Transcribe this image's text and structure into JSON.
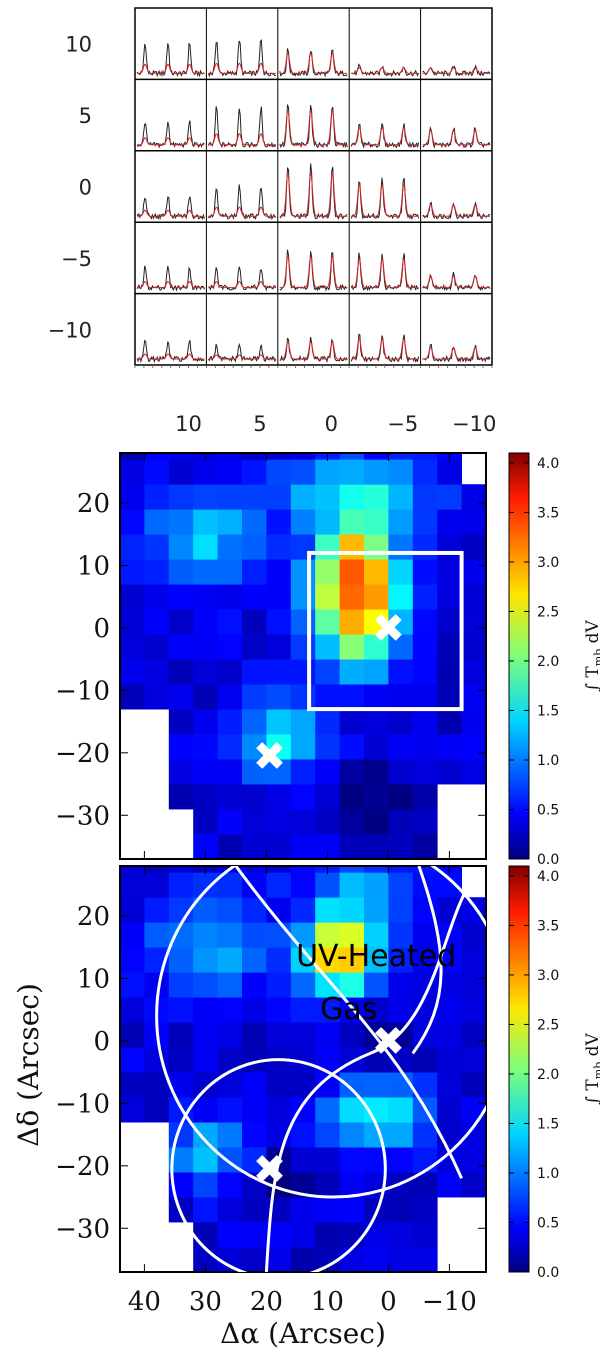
{
  "chart_data": [
    {
      "type": "line",
      "description_role": "spectra grid",
      "rows": 5,
      "cols": 5,
      "row_offsets": [
        10,
        5,
        0,
        -5,
        -10
      ],
      "col_offsets": [
        10,
        5,
        0,
        -5,
        -10
      ],
      "yticks": [
        "10",
        "5",
        "0",
        "−5",
        "−10"
      ],
      "xticks": [
        "10",
        "5",
        "0",
        "−5",
        "−10"
      ],
      "series": [
        {
          "name": "",
          "color": "#222222"
        },
        {
          "name": "",
          "color": "#d62728"
        }
      ],
      "peak_scale": [
        [
          0.9,
          1.0,
          0.7,
          0.2,
          0.2
        ],
        [
          0.7,
          1.1,
          1.2,
          0.6,
          0.5
        ],
        [
          0.6,
          0.9,
          1.5,
          1.1,
          0.4
        ],
        [
          0.6,
          0.6,
          1.1,
          1.0,
          0.4
        ],
        [
          0.5,
          0.4,
          0.6,
          0.7,
          0.4
        ]
      ]
    },
    {
      "type": "heatmap",
      "role": "top-map",
      "xlim": [
        44,
        -16
      ],
      "ylim": [
        -37,
        28
      ],
      "yticks": [
        20,
        10,
        0,
        -10,
        -20,
        -30
      ],
      "ytick_labels": [
        "20",
        "10",
        "0",
        "−10",
        "−20",
        "−30"
      ],
      "markers": [
        {
          "x": 0,
          "y": 0,
          "symbol": "✖"
        },
        {
          "x": 19.5,
          "y": -20.5,
          "symbol": "✖"
        }
      ],
      "box": {
        "x0": 13,
        "x1": -12,
        "y0": -13,
        "y1": 12
      },
      "colorbar": {
        "min": 0.0,
        "max": 4.1,
        "ticks": [
          "0.0",
          "0.5",
          "1.0",
          "1.5",
          "2.0",
          "2.5",
          "3.0",
          "3.5",
          "4.0"
        ],
        "label": "∫ T_mb dV",
        "label_main": "∫ T",
        "label_sub": "mb",
        "label_end": " dV"
      }
    },
    {
      "type": "heatmap",
      "role": "bottom-map",
      "xlim": [
        44,
        -16
      ],
      "ylim": [
        -37,
        28
      ],
      "xticks": [
        40,
        30,
        20,
        10,
        0,
        -10
      ],
      "xtick_labels": [
        "40",
        "30",
        "20",
        "10",
        "0",
        "−10"
      ],
      "yticks": [
        20,
        10,
        0,
        -10,
        -20,
        -30
      ],
      "ytick_labels": [
        "20",
        "10",
        "0",
        "−10",
        "−20",
        "−30"
      ],
      "xlabel": "Δα (Arcsec)",
      "ylabel": "Δδ (Arcsec)",
      "annotation": [
        "UV-Heated",
        "Gas"
      ],
      "markers": [
        {
          "x": 0,
          "y": 0,
          "symbol": "✖"
        },
        {
          "x": 19.5,
          "y": -20.5,
          "symbol": "✖"
        }
      ],
      "circles": [
        {
          "cx": 18,
          "cy": -20.5,
          "r": 17.5
        },
        {
          "cx": 9,
          "cy": 4,
          "r": 29
        },
        {
          "cx": 0,
          "cy": 0,
          "note": "large offset arc"
        }
      ],
      "colorbar": {
        "min": 0.0,
        "max": 4.1,
        "ticks": [
          "0.0",
          "0.5",
          "1.0",
          "1.5",
          "2.0",
          "2.5",
          "3.0",
          "3.5",
          "4.0"
        ],
        "label": "∫ T_mb dV",
        "label_main": "∫ T",
        "label_sub": "mb",
        "label_end": " dV"
      }
    }
  ]
}
